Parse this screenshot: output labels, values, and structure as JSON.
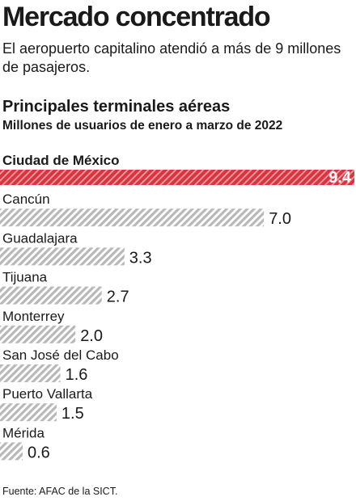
{
  "header": {
    "title": "Mercado concentrado",
    "dek": "El aeropuerto capitalino atendió a más de 9 millones de pasajeros."
  },
  "footer": {
    "source": "Fuente: AFAC de la SICT."
  },
  "colors": {
    "highlight": "#d9343f",
    "highlight_stripe": "#f2a0a6",
    "bar_stripe": "#b8b8b8",
    "text": "#1a1a1a"
  },
  "chart_data": {
    "type": "bar",
    "orientation": "horizontal",
    "title": "Principales terminales aéreas",
    "subtitle": "Millones de usuarios de enero a marzo de 2022",
    "categories": [
      "Ciudad de México",
      "Cancún",
      "Guadalajara",
      "Tijuana",
      "Monterrey",
      "San José del Cabo",
      "Puerto Vallarta",
      "Mérida"
    ],
    "values": [
      9.4,
      7.0,
      3.3,
      2.7,
      2.0,
      1.6,
      1.5,
      0.6
    ],
    "value_labels": [
      "9.4",
      "7.0",
      "3.3",
      "2.7",
      "2.0",
      "1.6",
      "1.5",
      "0.6"
    ],
    "highlight_index": 0,
    "xlim": [
      0,
      9.4
    ],
    "grid": false,
    "legend": "none"
  }
}
